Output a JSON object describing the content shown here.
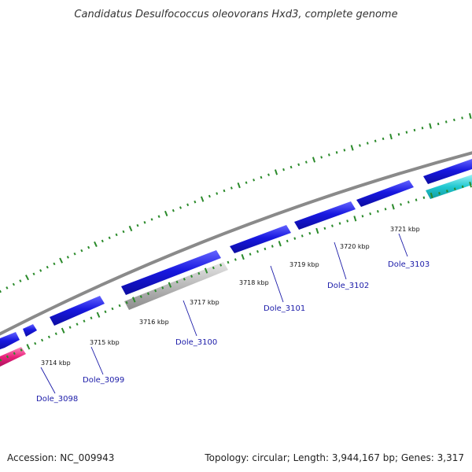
{
  "title": "Candidatus Desulfococcus oleovorans Hxd3, complete genome",
  "footer": {
    "accession": "Accession: NC_009943",
    "topology": "Topology: circular; Length: 3,944,167 bp; Genes: 3,317"
  },
  "colors": {
    "backbone": "#8a8a8a",
    "forward_gene": "#1818e0",
    "forward_gene_light": "#6464ff",
    "pseudo_gene": "#b8b8b8",
    "pseudo_gene_light": "#e6e6e6",
    "rna_gene": "#20c8d0",
    "rna_gene_light": "#9af0f4",
    "other_gene": "#e8207a",
    "other_gene_light": "#ff8cc0",
    "ticks": "#2a8a2a",
    "label": "#1a1aa8"
  },
  "ticks": [
    "3714 kbp",
    "3715 kbp",
    "3716 kbp",
    "3717 kbp",
    "3718 kbp",
    "3719 kbp",
    "3720 kbp",
    "3721 kbp"
  ],
  "genes": [
    "Dole_3098",
    "Dole_3099",
    "Dole_3100",
    "Dole_3101",
    "Dole_3102",
    "Dole_3103"
  ]
}
